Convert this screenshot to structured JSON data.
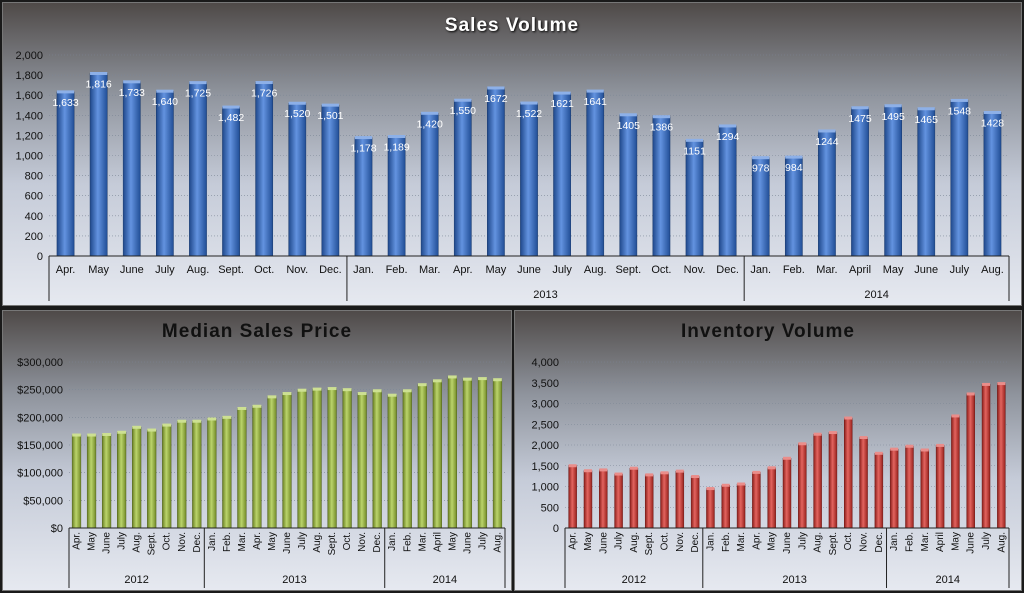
{
  "chart_data": [
    {
      "id": "sales",
      "type": "bar",
      "title": "Sales Volume",
      "categories": [
        "Apr.",
        "May",
        "June",
        "July",
        "Aug.",
        "Sept.",
        "Oct.",
        "Nov.",
        "Dec.",
        "Jan.",
        "Feb.",
        "Mar.",
        "Apr.",
        "May",
        "June",
        "July",
        "Aug.",
        "Sept.",
        "Oct.",
        "Nov.",
        "Dec.",
        "Jan.",
        "Feb.",
        "Mar.",
        "April",
        "May",
        "June",
        "July",
        "Aug."
      ],
      "groups": [
        {
          "label": "",
          "count": 9
        },
        {
          "label": "2013",
          "count": 12
        },
        {
          "label": "2014",
          "count": 8
        }
      ],
      "values": [
        1633,
        1816,
        1733,
        1640,
        1725,
        1482,
        1726,
        1520,
        1501,
        1178,
        1189,
        1420,
        1550,
        1672,
        1522,
        1621,
        1641,
        1405,
        1386,
        1151,
        1294,
        978,
        984,
        1244,
        1475,
        1495,
        1465,
        1548,
        1428
      ],
      "data_labels": [
        "1,633",
        "1,816",
        "1,733",
        "1,640",
        "1,725",
        "1,482",
        "1,726",
        "1,520",
        "1,501",
        "1,178",
        "1,189",
        "1,420",
        "1,550",
        "1672",
        "1,522",
        "1621",
        "1641",
        "1405",
        "1386",
        "1151",
        "1294",
        "978",
        "984",
        "1244",
        "1475",
        "1495",
        "1465",
        "1548",
        "1428"
      ],
      "ylim": [
        0,
        2000
      ],
      "yticks": [
        "0",
        "200",
        "400",
        "600",
        "800",
        "1,000",
        "1,200",
        "1,400",
        "1,600",
        "1,800",
        "2,000"
      ],
      "grid": true,
      "color": "#2f6fd6"
    },
    {
      "id": "price",
      "type": "bar",
      "title": "Median Sales Price",
      "categories": [
        "Apr.",
        "May",
        "June",
        "July",
        "Aug.",
        "Sept.",
        "Oct.",
        "Nov.",
        "Dec.",
        "Jan.",
        "Feb.",
        "Mar.",
        "Apr.",
        "May",
        "June",
        "July",
        "Aug.",
        "Sept.",
        "Oct.",
        "Nov.",
        "Dec.",
        "Jan.",
        "Feb.",
        "Mar.",
        "April",
        "May",
        "June",
        "July",
        "Aug."
      ],
      "groups": [
        {
          "label": "2012",
          "count": 9
        },
        {
          "label": "2013",
          "count": 12
        },
        {
          "label": "2014",
          "count": 8
        }
      ],
      "values": [
        168000,
        168000,
        169000,
        173000,
        182000,
        177000,
        186000,
        193000,
        193000,
        197000,
        200000,
        216000,
        220000,
        237000,
        243000,
        249000,
        251000,
        252000,
        250000,
        243000,
        248000,
        240000,
        248000,
        259000,
        266000,
        273000,
        269000,
        270000,
        268000
      ],
      "ylim": [
        0,
        300000
      ],
      "yticks": [
        "$0",
        "$50,000",
        "$100,000",
        "$150,000",
        "$200,000",
        "$250,000",
        "$300,000"
      ],
      "grid": true,
      "color": "#a4c639"
    },
    {
      "id": "inventory",
      "type": "bar",
      "title": "Inventory Volume",
      "categories": [
        "Apr.",
        "May",
        "June",
        "July",
        "Aug.",
        "Sept.",
        "Oct.",
        "Nov.",
        "Dec.",
        "Jan.",
        "Feb.",
        "Mar.",
        "Apr.",
        "May",
        "June",
        "July",
        "Aug.",
        "Sept.",
        "Oct.",
        "Nov.",
        "Dec.",
        "Jan.",
        "Feb.",
        "Mar.",
        "April",
        "May",
        "June",
        "July",
        "Aug."
      ],
      "groups": [
        {
          "label": "2012",
          "count": 9
        },
        {
          "label": "2013",
          "count": 12
        },
        {
          "label": "2014",
          "count": 8
        }
      ],
      "values": [
        1500,
        1380,
        1400,
        1300,
        1440,
        1280,
        1330,
        1370,
        1240,
        950,
        1030,
        1060,
        1340,
        1450,
        1680,
        2030,
        2260,
        2300,
        2650,
        2180,
        1800,
        1900,
        1970,
        1880,
        1990,
        2700,
        3230,
        3460,
        3480
      ],
      "ylim": [
        0,
        4000
      ],
      "yticks": [
        "0",
        "500",
        "1,000",
        "1,500",
        "2,000",
        "2,500",
        "3,000",
        "3,500",
        "4,000"
      ],
      "grid": true,
      "color": "#d9302a"
    }
  ]
}
